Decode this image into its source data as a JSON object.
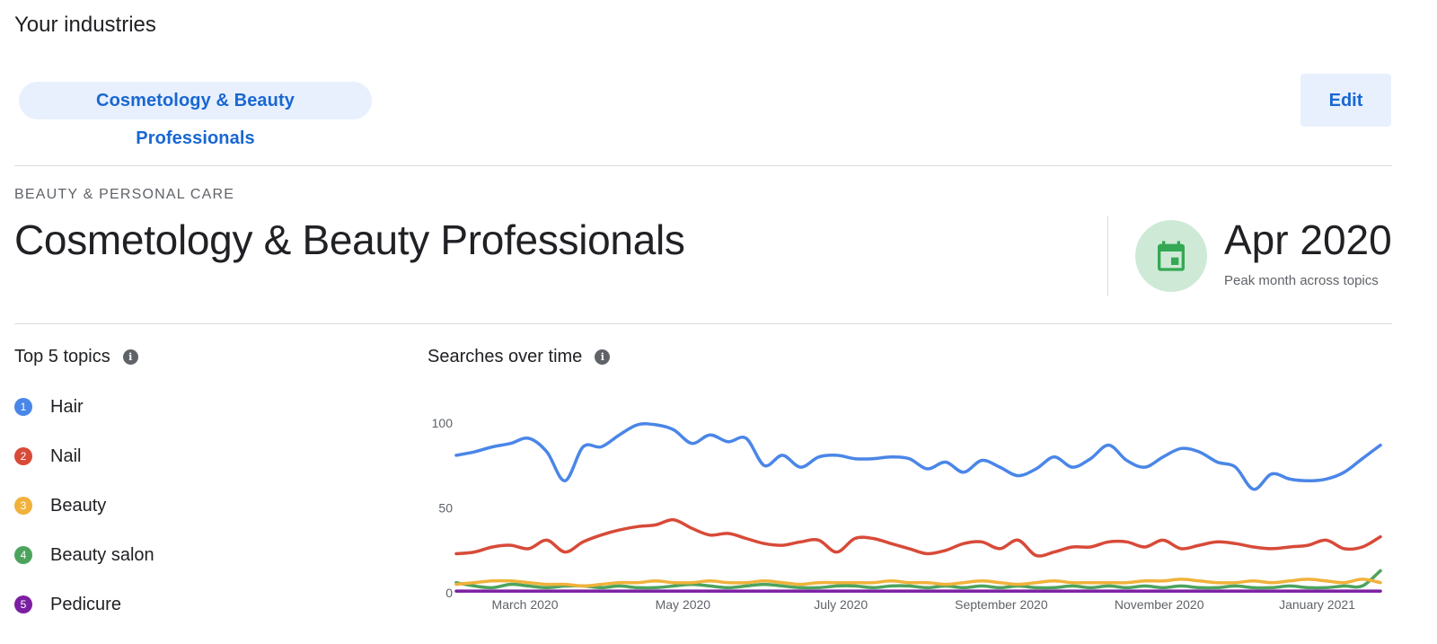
{
  "header": {
    "title": "Your industries"
  },
  "industry_chip": {
    "label": "Cosmetology & Beauty Professionals"
  },
  "edit_button": {
    "label": "Edit"
  },
  "industry": {
    "category": "BEAUTY & PERSONAL CARE",
    "name": "Cosmetology & Beauty Professionals",
    "peak_month": "Apr 2020",
    "peak_label": "Peak month across topics",
    "calendar_icon": "calendar-icon"
  },
  "topics": {
    "heading": "Top 5 topics",
    "info_icon": "info-icon",
    "items": [
      {
        "rank": "1",
        "label": "Hair",
        "color": "#4a86e8"
      },
      {
        "rank": "2",
        "label": "Nail",
        "color": "#d84a38"
      },
      {
        "rank": "3",
        "label": "Beauty",
        "color": "#f0b23a"
      },
      {
        "rank": "4",
        "label": "Beauty salon",
        "color": "#4da35e"
      },
      {
        "rank": "5",
        "label": "Pedicure",
        "color": "#7b1fa2"
      }
    ]
  },
  "searches": {
    "heading": "Searches over time",
    "info_icon": "info-icon"
  },
  "chart_data": {
    "type": "line",
    "ylim": [
      0,
      100
    ],
    "yticks": [
      "0",
      "50",
      "100"
    ],
    "xticks": [
      "March 2020",
      "May 2020",
      "July 2020",
      "September 2020",
      "November 2020",
      "January 2021"
    ],
    "x": [
      "2020-02-09",
      "2020-02-16",
      "2020-02-23",
      "2020-03-01",
      "2020-03-08",
      "2020-03-15",
      "2020-03-22",
      "2020-03-29",
      "2020-04-05",
      "2020-04-12",
      "2020-04-19",
      "2020-04-26",
      "2020-05-03",
      "2020-05-10",
      "2020-05-17",
      "2020-05-24",
      "2020-05-31",
      "2020-06-07",
      "2020-06-14",
      "2020-06-21",
      "2020-06-28",
      "2020-07-05",
      "2020-07-12",
      "2020-07-19",
      "2020-07-26",
      "2020-08-02",
      "2020-08-09",
      "2020-08-16",
      "2020-08-23",
      "2020-08-30",
      "2020-09-06",
      "2020-09-13",
      "2020-09-20",
      "2020-09-27",
      "2020-10-04",
      "2020-10-11",
      "2020-10-18",
      "2020-10-25",
      "2020-11-01",
      "2020-11-08",
      "2020-11-15",
      "2020-11-22",
      "2020-11-29",
      "2020-12-06",
      "2020-12-13",
      "2020-12-20",
      "2020-12-27",
      "2021-01-03",
      "2021-01-10",
      "2021-01-17",
      "2021-01-24",
      "2021-01-31"
    ],
    "series": [
      {
        "name": "Hair",
        "color": "#4a86e8",
        "values": [
          81,
          83,
          86,
          88,
          91,
          83,
          66,
          86,
          86,
          93,
          99,
          99,
          96,
          88,
          93,
          89,
          91,
          75,
          81,
          74,
          80,
          81,
          79,
          79,
          80,
          79,
          73,
          77,
          71,
          78,
          74,
          69,
          73,
          80,
          74,
          79,
          87,
          78,
          74,
          80,
          85,
          83,
          77,
          74,
          61,
          70,
          67,
          66,
          67,
          71,
          79,
          87
        ]
      },
      {
        "name": "Nail",
        "color": "#d84a38",
        "values": [
          23,
          24,
          27,
          28,
          26,
          31,
          24,
          30,
          34,
          37,
          39,
          40,
          43,
          38,
          34,
          35,
          32,
          29,
          28,
          30,
          31,
          24,
          32,
          32,
          29,
          26,
          23,
          25,
          29,
          30,
          26,
          31,
          22,
          24,
          27,
          27,
          30,
          30,
          27,
          31,
          26,
          28,
          30,
          29,
          27,
          26,
          27,
          28,
          31,
          26,
          27,
          33
        ]
      },
      {
        "name": "Beauty",
        "color": "#f0b23a",
        "values": [
          5,
          6,
          7,
          7,
          6,
          5,
          5,
          4,
          5,
          6,
          6,
          7,
          6,
          6,
          7,
          6,
          6,
          7,
          6,
          5,
          6,
          6,
          6,
          6,
          7,
          6,
          6,
          5,
          6,
          7,
          6,
          5,
          6,
          7,
          6,
          6,
          6,
          6,
          7,
          7,
          8,
          7,
          6,
          6,
          7,
          6,
          7,
          8,
          7,
          6,
          8,
          6
        ]
      },
      {
        "name": "Beauty salon",
        "color": "#4da35e",
        "values": [
          6,
          4,
          3,
          5,
          4,
          3,
          4,
          4,
          3,
          4,
          3,
          3,
          4,
          5,
          4,
          3,
          4,
          5,
          4,
          3,
          3,
          4,
          4,
          3,
          4,
          4,
          3,
          4,
          3,
          4,
          3,
          4,
          3,
          3,
          4,
          3,
          4,
          3,
          4,
          3,
          4,
          3,
          3,
          4,
          3,
          3,
          4,
          3,
          3,
          4,
          4,
          13
        ]
      },
      {
        "name": "Pedicure",
        "color": "#7b1fa2",
        "values": [
          1,
          1,
          1,
          1,
          1,
          1,
          1,
          1,
          1,
          1,
          1,
          1,
          1,
          1,
          1,
          1,
          1,
          1,
          1,
          1,
          1,
          1,
          1,
          1,
          1,
          1,
          1,
          1,
          1,
          1,
          1,
          1,
          1,
          1,
          1,
          1,
          1,
          1,
          1,
          1,
          1,
          1,
          1,
          1,
          1,
          1,
          1,
          1,
          1,
          1,
          1,
          1
        ]
      }
    ]
  }
}
